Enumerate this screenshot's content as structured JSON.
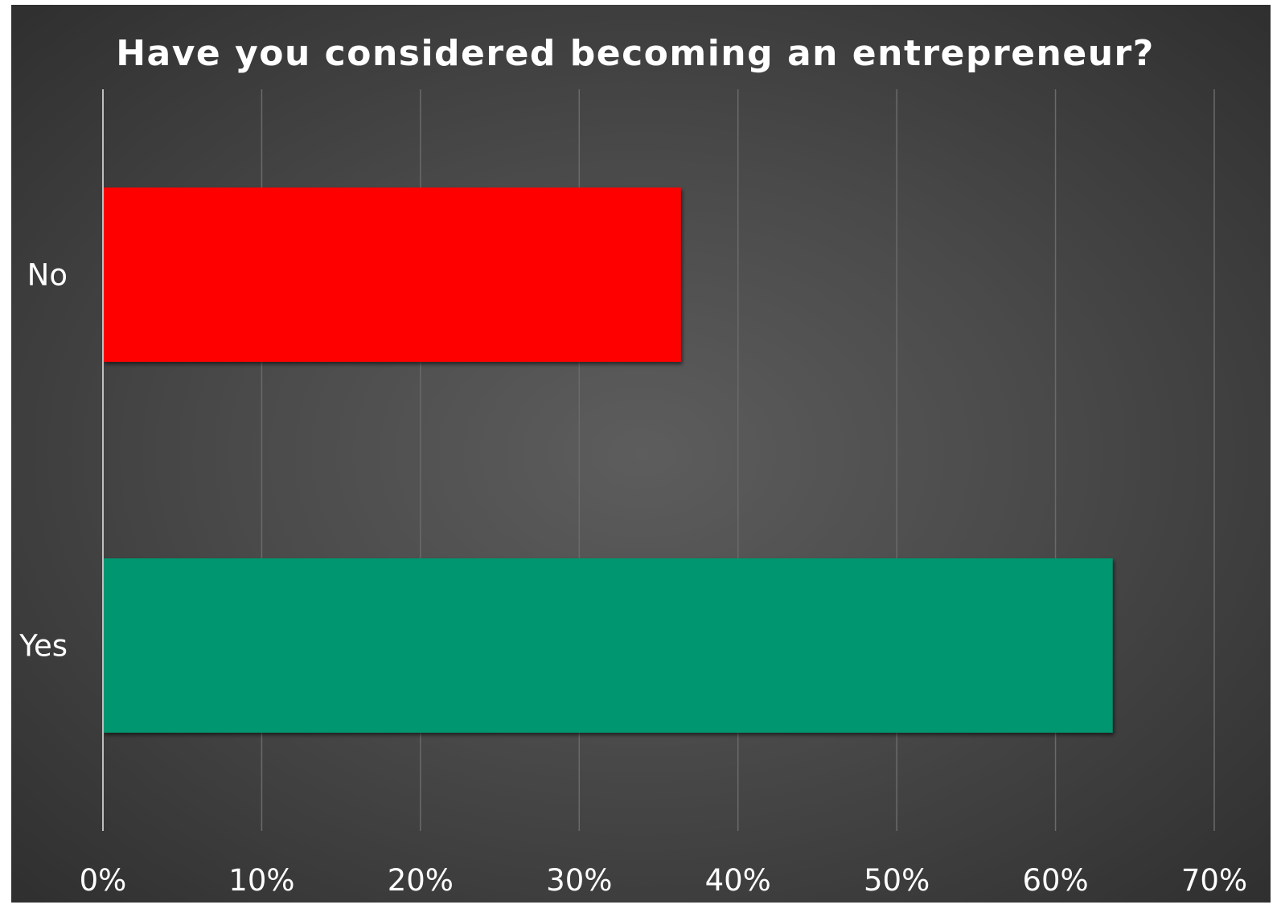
{
  "chart_data": {
    "type": "bar",
    "orientation": "horizontal",
    "title": "Have you considered becoming an entrepreneur?",
    "categories": [
      "No",
      "Yes"
    ],
    "values": [
      36.4,
      63.6
    ],
    "colors": [
      "#ff0000",
      "#039670"
    ],
    "xlim": [
      0,
      70
    ],
    "xticks": [
      0,
      10,
      20,
      30,
      40,
      50,
      60,
      70
    ],
    "xtick_labels": [
      "0%",
      "10%",
      "20%",
      "30%",
      "40%",
      "50%",
      "60%",
      "70%"
    ],
    "xlabel": "",
    "ylabel": "",
    "grid": true,
    "legend": "none",
    "background": "#4d4d4d",
    "text_color": "#ffffff",
    "gridline_color": "#6a6a6a",
    "axis_color": "#bfbfbf"
  }
}
